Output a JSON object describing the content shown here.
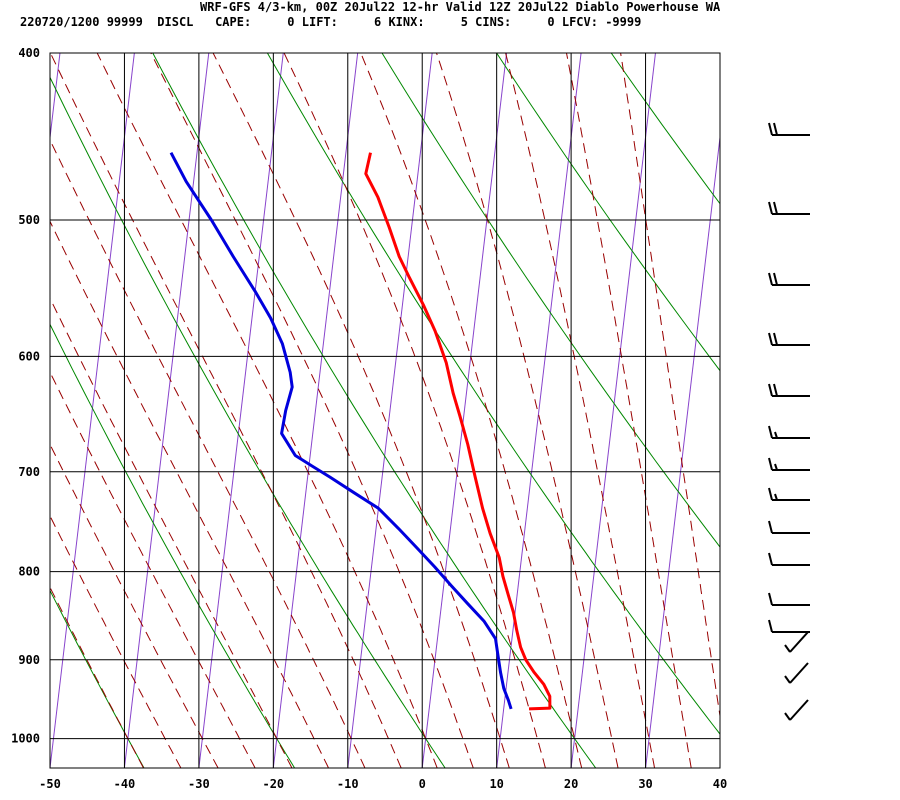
{
  "header": {
    "title": "WRF-GFS 4/3-km, 00Z 20Jul22 12-hr Valid 12Z 20Jul22 Diablo Powerhouse WA",
    "stats": "220720/1200 99999  DISCL   CAPE:     0 LIFT:     6 KINX:     5 CINS:     0 LFCV: -9999"
  },
  "chart_data": {
    "type": "line",
    "title": "",
    "xlabel": "",
    "ylabel": "",
    "x_ticks": [
      -50,
      -40,
      -30,
      -20,
      -10,
      0,
      10,
      20,
      30,
      40
    ],
    "y_ticks": [
      400,
      500,
      600,
      700,
      800,
      900,
      1000
    ],
    "xlim": [
      -50,
      40
    ],
    "ylim": [
      1040,
      400
    ],
    "y_scale": "log",
    "series": [
      {
        "color": "#ff0000",
        "values": [
          [
            13.4,
            961
          ],
          [
            16.2,
            960
          ],
          [
            16.0,
            945
          ],
          [
            15.0,
            930
          ],
          [
            13.5,
            915
          ],
          [
            12.2,
            900
          ],
          [
            11.3,
            885
          ],
          [
            10.5,
            865
          ],
          [
            9.8,
            845
          ],
          [
            8.8,
            825
          ],
          [
            7.8,
            805
          ],
          [
            7.0,
            785
          ],
          [
            5.4,
            760
          ],
          [
            4.0,
            735
          ],
          [
            2.5,
            705
          ],
          [
            1.0,
            675
          ],
          [
            -0.5,
            650
          ],
          [
            -1.8,
            630
          ],
          [
            -3.2,
            605
          ],
          [
            -5.2,
            580
          ],
          [
            -7.2,
            560
          ],
          [
            -9.5,
            540
          ],
          [
            -11.2,
            525
          ],
          [
            -13.0,
            505
          ],
          [
            -15.0,
            485
          ],
          [
            -17.0,
            470
          ],
          [
            -16.7,
            457
          ]
        ]
      },
      {
        "color": "#0000dd",
        "values": [
          [
            11.0,
            961
          ],
          [
            10.5,
            950
          ],
          [
            9.7,
            935
          ],
          [
            9.0,
            915
          ],
          [
            8.4,
            895
          ],
          [
            7.8,
            875
          ],
          [
            6.0,
            855
          ],
          [
            3.5,
            835
          ],
          [
            1.0,
            815
          ],
          [
            -1.5,
            795
          ],
          [
            -4.2,
            775
          ],
          [
            -7.0,
            755
          ],
          [
            -10.0,
            735
          ],
          [
            -13.5,
            720
          ],
          [
            -17.0,
            705
          ],
          [
            -19.5,
            695
          ],
          [
            -22.0,
            685
          ],
          [
            -24.2,
            665
          ],
          [
            -24.0,
            645
          ],
          [
            -23.5,
            625
          ],
          [
            -24.0,
            613
          ],
          [
            -25.5,
            590
          ],
          [
            -27.5,
            570
          ],
          [
            -30.0,
            550
          ],
          [
            -33.5,
            525
          ],
          [
            -37.0,
            500
          ],
          [
            -41.0,
            475
          ],
          [
            -43.5,
            457
          ]
        ]
      }
    ],
    "background_lines": {
      "isotherms": {
        "color": "#8844cc"
      },
      "dry_adiabats": {
        "color": "#008800"
      },
      "moist_adiabats": {
        "color": "#990000",
        "style": "dashed"
      }
    },
    "grid": true,
    "wind_barbs": [
      {
        "pressure": 457,
        "speed_kt": 20
      },
      {
        "pressure": 500,
        "speed_kt": 20
      },
      {
        "pressure": 550,
        "speed_kt": 20
      },
      {
        "pressure": 600,
        "speed_kt": 20
      },
      {
        "pressure": 650,
        "speed_kt": 20
      },
      {
        "pressure": 700,
        "speed_kt": 15
      },
      {
        "pressure": 725,
        "speed_kt": 15
      },
      {
        "pressure": 750,
        "speed_kt": 15
      },
      {
        "pressure": 775,
        "speed_kt": 10
      },
      {
        "pressure": 800,
        "speed_kt": 10
      },
      {
        "pressure": 850,
        "speed_kt": 10
      },
      {
        "pressure": 875,
        "speed_kt": 10
      },
      {
        "pressure": 900,
        "speed_kt": 5
      },
      {
        "pressure": 925,
        "speed_kt": 5
      },
      {
        "pressure": 960,
        "speed_kt": 5
      }
    ]
  }
}
